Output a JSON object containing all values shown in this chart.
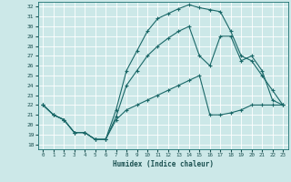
{
  "xlabel": "Humidex (Indice chaleur)",
  "bg_color": "#cce8e8",
  "grid_color": "#b0d8d8",
  "line_color": "#1a6868",
  "xlim": [
    -0.5,
    23.5
  ],
  "ylim": [
    17.5,
    32.5
  ],
  "xticks": [
    0,
    1,
    2,
    3,
    4,
    5,
    6,
    7,
    8,
    9,
    10,
    11,
    12,
    13,
    14,
    15,
    16,
    17,
    18,
    19,
    20,
    21,
    22,
    23
  ],
  "yticks": [
    18,
    19,
    20,
    21,
    22,
    23,
    24,
    25,
    26,
    27,
    28,
    29,
    30,
    31,
    32
  ],
  "curve_top_x": [
    0,
    1,
    2,
    3,
    4,
    5,
    6,
    7,
    8,
    9,
    10,
    11,
    12,
    13,
    14,
    15,
    16,
    17,
    18,
    19,
    20,
    21,
    22,
    23
  ],
  "curve_top_y": [
    22,
    21,
    20.5,
    19.2,
    19.2,
    18.5,
    18.5,
    21.5,
    25.5,
    27.5,
    29.5,
    30.8,
    31.3,
    31.8,
    32.2,
    31.9,
    31.7,
    31.5,
    29.5,
    27,
    26.5,
    25,
    23.5,
    22
  ],
  "curve_mid_x": [
    0,
    1,
    2,
    3,
    4,
    5,
    6,
    7,
    8,
    9,
    10,
    11,
    12,
    13,
    14,
    15,
    16,
    17,
    18,
    19,
    20,
    21,
    22,
    23
  ],
  "curve_mid_y": [
    22,
    21,
    20.5,
    19.2,
    19.2,
    18.5,
    18.5,
    20.8,
    24,
    25.5,
    27,
    28,
    28.8,
    29.5,
    30,
    27,
    26,
    29,
    29,
    26.5,
    27,
    25.5,
    22.5,
    22
  ],
  "curve_bot_x": [
    0,
    1,
    2,
    3,
    4,
    5,
    6,
    7,
    8,
    9,
    10,
    11,
    12,
    13,
    14,
    15,
    16,
    17,
    18,
    19,
    20,
    21,
    22,
    23
  ],
  "curve_bot_y": [
    22,
    21,
    20.5,
    19.2,
    19.2,
    18.5,
    18.5,
    20.5,
    21.5,
    22,
    22.5,
    23,
    23.5,
    24,
    24.5,
    25,
    21,
    21,
    21.2,
    21.5,
    22,
    22,
    22,
    22
  ]
}
